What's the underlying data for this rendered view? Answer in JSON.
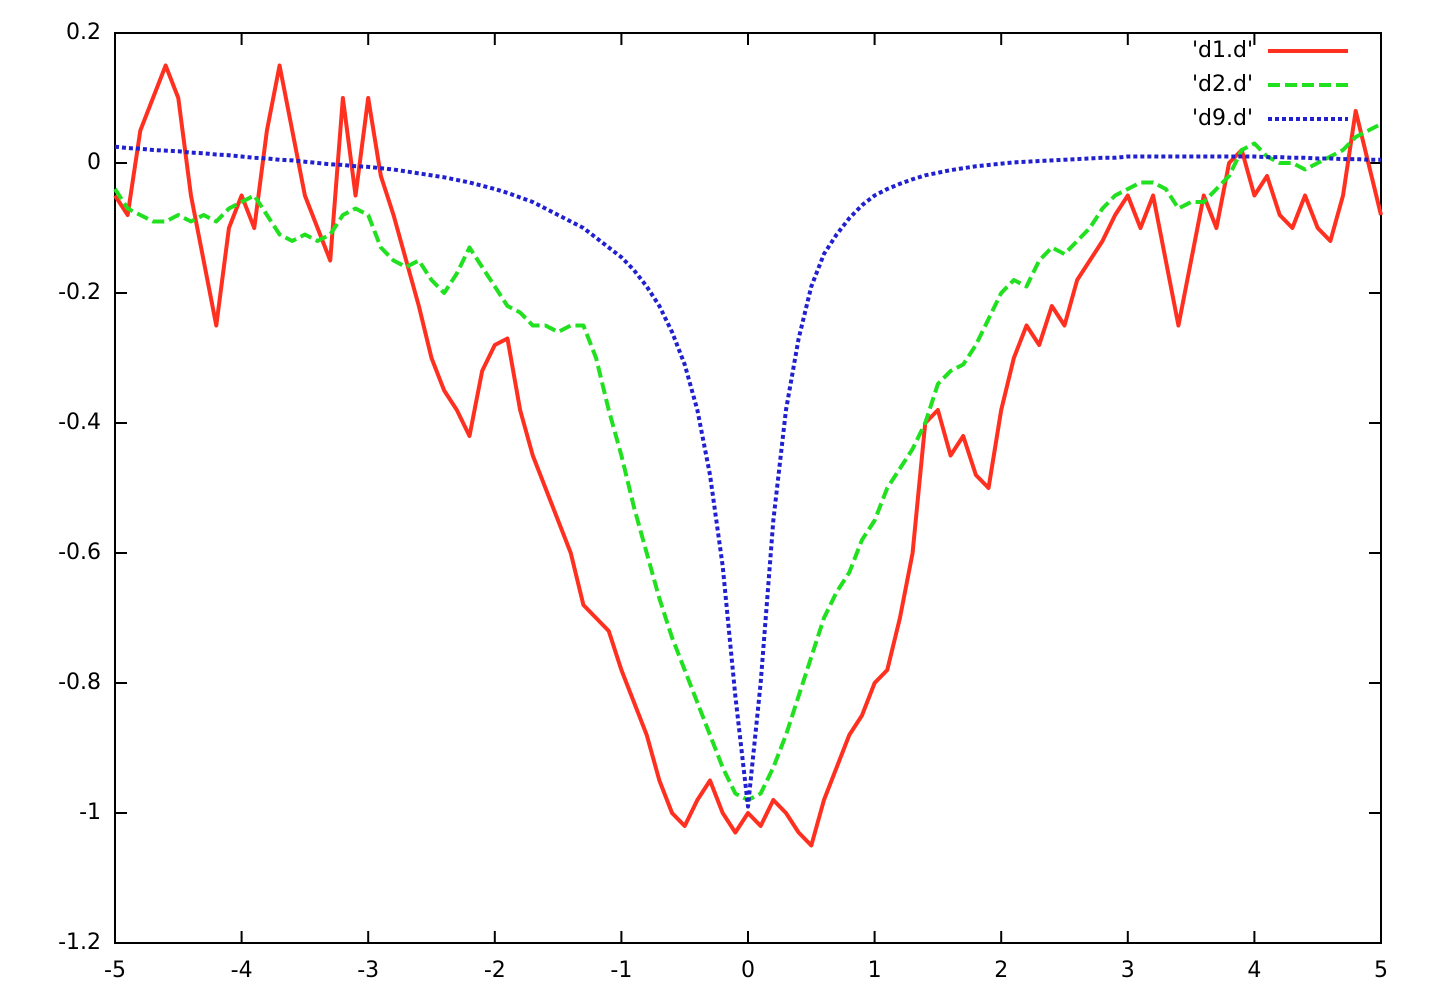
{
  "chart_data": {
    "type": "line",
    "x": [
      -5,
      -4.9,
      -4.8,
      -4.7,
      -4.6,
      -4.5,
      -4.4,
      -4.3,
      -4.2,
      -4.1,
      -4,
      -3.9,
      -3.8,
      -3.7,
      -3.6,
      -3.5,
      -3.4,
      -3.3,
      -3.2,
      -3.1,
      -3,
      -2.9,
      -2.8,
      -2.7,
      -2.6,
      -2.5,
      -2.4,
      -2.3,
      -2.2,
      -2.1,
      -2,
      -1.9,
      -1.8,
      -1.7,
      -1.6,
      -1.5,
      -1.4,
      -1.3,
      -1.2,
      -1.1,
      -1,
      -0.9,
      -0.8,
      -0.7,
      -0.6,
      -0.5,
      -0.4,
      -0.3,
      -0.2,
      -0.1,
      0,
      0.1,
      0.2,
      0.3,
      0.4,
      0.5,
      0.6,
      0.7,
      0.8,
      0.9,
      1,
      1.1,
      1.2,
      1.3,
      1.4,
      1.5,
      1.6,
      1.7,
      1.8,
      1.9,
      2,
      2.1,
      2.2,
      2.3,
      2.4,
      2.5,
      2.6,
      2.7,
      2.8,
      2.9,
      3,
      3.1,
      3.2,
      3.3,
      3.4,
      3.5,
      3.6,
      3.7,
      3.8,
      3.9,
      4,
      4.1,
      4.2,
      4.3,
      4.4,
      4.5,
      4.6,
      4.7,
      4.8,
      4.9,
      5
    ],
    "series": [
      {
        "name": "'d1.d'",
        "color": "#ff3020",
        "style": "solid",
        "values": [
          -0.05,
          -0.08,
          0.05,
          0.1,
          0.15,
          0.1,
          -0.05,
          -0.15,
          -0.25,
          -0.1,
          -0.05,
          -0.1,
          0.05,
          0.15,
          0.05,
          -0.05,
          -0.1,
          -0.15,
          0.1,
          -0.05,
          0.1,
          -0.02,
          -0.08,
          -0.15,
          -0.22,
          -0.3,
          -0.35,
          -0.38,
          -0.42,
          -0.32,
          -0.28,
          -0.27,
          -0.38,
          -0.45,
          -0.5,
          -0.55,
          -0.6,
          -0.68,
          -0.7,
          -0.72,
          -0.78,
          -0.83,
          -0.88,
          -0.95,
          -1.0,
          -1.02,
          -0.98,
          -0.95,
          -1.0,
          -1.03,
          -1.0,
          -1.02,
          -0.98,
          -1.0,
          -1.03,
          -1.05,
          -0.98,
          -0.93,
          -0.88,
          -0.85,
          -0.8,
          -0.78,
          -0.7,
          -0.6,
          -0.4,
          -0.38,
          -0.45,
          -0.42,
          -0.48,
          -0.5,
          -0.38,
          -0.3,
          -0.25,
          -0.28,
          -0.22,
          -0.25,
          -0.18,
          -0.15,
          -0.12,
          -0.08,
          -0.05,
          -0.1,
          -0.05,
          -0.15,
          -0.25,
          -0.15,
          -0.05,
          -0.1,
          0.0,
          0.02,
          -0.05,
          -0.02,
          -0.08,
          -0.1,
          -0.05,
          -0.1,
          -0.12,
          -0.05,
          0.08,
          0.0,
          -0.08
        ]
      },
      {
        "name": "'d2.d'",
        "color": "#20e020",
        "style": "dashed",
        "values": [
          -0.04,
          -0.07,
          -0.08,
          -0.09,
          -0.09,
          -0.08,
          -0.09,
          -0.08,
          -0.09,
          -0.07,
          -0.06,
          -0.05,
          -0.08,
          -0.11,
          -0.12,
          -0.11,
          -0.12,
          -0.11,
          -0.08,
          -0.07,
          -0.08,
          -0.13,
          -0.15,
          -0.16,
          -0.15,
          -0.18,
          -0.2,
          -0.17,
          -0.13,
          -0.16,
          -0.19,
          -0.22,
          -0.23,
          -0.25,
          -0.25,
          -0.26,
          -0.25,
          -0.25,
          -0.3,
          -0.38,
          -0.45,
          -0.53,
          -0.6,
          -0.67,
          -0.73,
          -0.78,
          -0.83,
          -0.88,
          -0.93,
          -0.97,
          -0.98,
          -0.97,
          -0.93,
          -0.88,
          -0.82,
          -0.76,
          -0.7,
          -0.66,
          -0.63,
          -0.58,
          -0.55,
          -0.5,
          -0.47,
          -0.44,
          -0.4,
          -0.34,
          -0.32,
          -0.31,
          -0.28,
          -0.24,
          -0.2,
          -0.18,
          -0.19,
          -0.15,
          -0.13,
          -0.14,
          -0.12,
          -0.1,
          -0.07,
          -0.05,
          -0.04,
          -0.03,
          -0.03,
          -0.04,
          -0.07,
          -0.06,
          -0.06,
          -0.04,
          -0.02,
          0.02,
          0.03,
          0.01,
          0.0,
          0.0,
          -0.01,
          0.0,
          0.01,
          0.02,
          0.04,
          0.05,
          0.06
        ]
      },
      {
        "name": "'d9.d'",
        "color": "#2020d0",
        "style": "dotted",
        "values": [
          0.025,
          0.023,
          0.022,
          0.02,
          0.019,
          0.018,
          0.016,
          0.015,
          0.013,
          0.012,
          0.01,
          0.008,
          0.007,
          0.005,
          0.004,
          0.002,
          0.0,
          -0.002,
          -0.003,
          -0.005,
          -0.006,
          -0.008,
          -0.01,
          -0.013,
          -0.016,
          -0.019,
          -0.022,
          -0.026,
          -0.03,
          -0.035,
          -0.04,
          -0.046,
          -0.053,
          -0.06,
          -0.07,
          -0.08,
          -0.09,
          -0.1,
          -0.115,
          -0.13,
          -0.145,
          -0.165,
          -0.19,
          -0.22,
          -0.26,
          -0.31,
          -0.38,
          -0.48,
          -0.62,
          -0.82,
          -0.99,
          -0.8,
          -0.55,
          -0.38,
          -0.27,
          -0.19,
          -0.14,
          -0.11,
          -0.085,
          -0.065,
          -0.05,
          -0.04,
          -0.032,
          -0.025,
          -0.019,
          -0.015,
          -0.011,
          -0.008,
          -0.005,
          -0.003,
          -0.001,
          0.001,
          0.002,
          0.003,
          0.004,
          0.005,
          0.006,
          0.007,
          0.008,
          0.008,
          0.01,
          0.01,
          0.01,
          0.01,
          0.01,
          0.01,
          0.01,
          0.01,
          0.01,
          0.01,
          0.01,
          0.009,
          0.009,
          0.008,
          0.008,
          0.007,
          0.007,
          0.006,
          0.006,
          0.005,
          0.005
        ]
      }
    ],
    "xlim": [
      -5,
      5
    ],
    "ylim": [
      -1.2,
      0.2
    ],
    "xticks": [
      -5,
      -4,
      -3,
      -2,
      -1,
      0,
      1,
      2,
      3,
      4,
      5
    ],
    "yticks": [
      -1.2,
      -1,
      -0.8,
      -0.6,
      -0.4,
      -0.2,
      0,
      0.2
    ],
    "legend": "top-right"
  }
}
